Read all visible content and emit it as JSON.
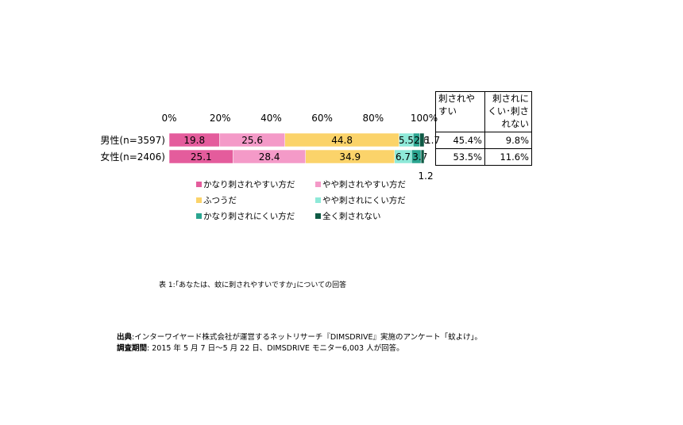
{
  "chart_data": {
    "type": "bar",
    "orientation": "horizontal",
    "stacked": true,
    "categories": [
      "男性(n=3597)",
      "女性(n=2406)"
    ],
    "series": [
      {
        "name": "かなり刺されやすい方だ",
        "color": "#e45c9c",
        "values": [
          19.8,
          25.1
        ]
      },
      {
        "name": "やや刺されやすい方だ",
        "color": "#f49ac8",
        "values": [
          25.6,
          28.4
        ]
      },
      {
        "name": "ふつうだ",
        "color": "#fbd36a",
        "values": [
          44.8,
          34.9
        ]
      },
      {
        "name": "やや刺されにくい方だ",
        "color": "#8ee9d8",
        "values": [
          5.5,
          6.7
        ]
      },
      {
        "name": "かなり刺されにくい方だ",
        "color": "#2aa590",
        "values": [
          2.6,
          3.7
        ]
      },
      {
        "name": "全く刺されない",
        "color": "#0f5a45",
        "values": [
          1.7,
          1.2
        ]
      }
    ],
    "data_labels": [
      [
        "19.8",
        "25.6",
        "44.8",
        "5.5",
        "2.6",
        "1.7"
      ],
      [
        "25.1",
        "28.4",
        "34.9",
        "6.7",
        "3.7",
        "1.2"
      ]
    ],
    "xlim": [
      0,
      100
    ],
    "xticks": [
      "0%",
      "20%",
      "40%",
      "60%",
      "80%",
      "100%"
    ],
    "grid": false,
    "legend_position": "bottom"
  },
  "table": {
    "headers": [
      "刺されやすい",
      "刺されにくい･刺されない"
    ],
    "rows": [
      [
        "45.4%",
        "9.8%"
      ],
      [
        "53.5%",
        "11.6%"
      ]
    ]
  },
  "caption": "表 1:｢あなたは、蚊に刺されやすいですか｣についての回答",
  "source": {
    "line1_label": "出典",
    "line1_text": ":インターワイヤード株式会社が運営するネットリサーチ『DIMSDRIVE』実施のアンケート「蚊よけ」。",
    "line2_label": "調査期間",
    "line2_text": ": 2015 年 5 月 7 日～5 月 22 日、DIMSDRIVE モニター6,003 人が回答。"
  }
}
